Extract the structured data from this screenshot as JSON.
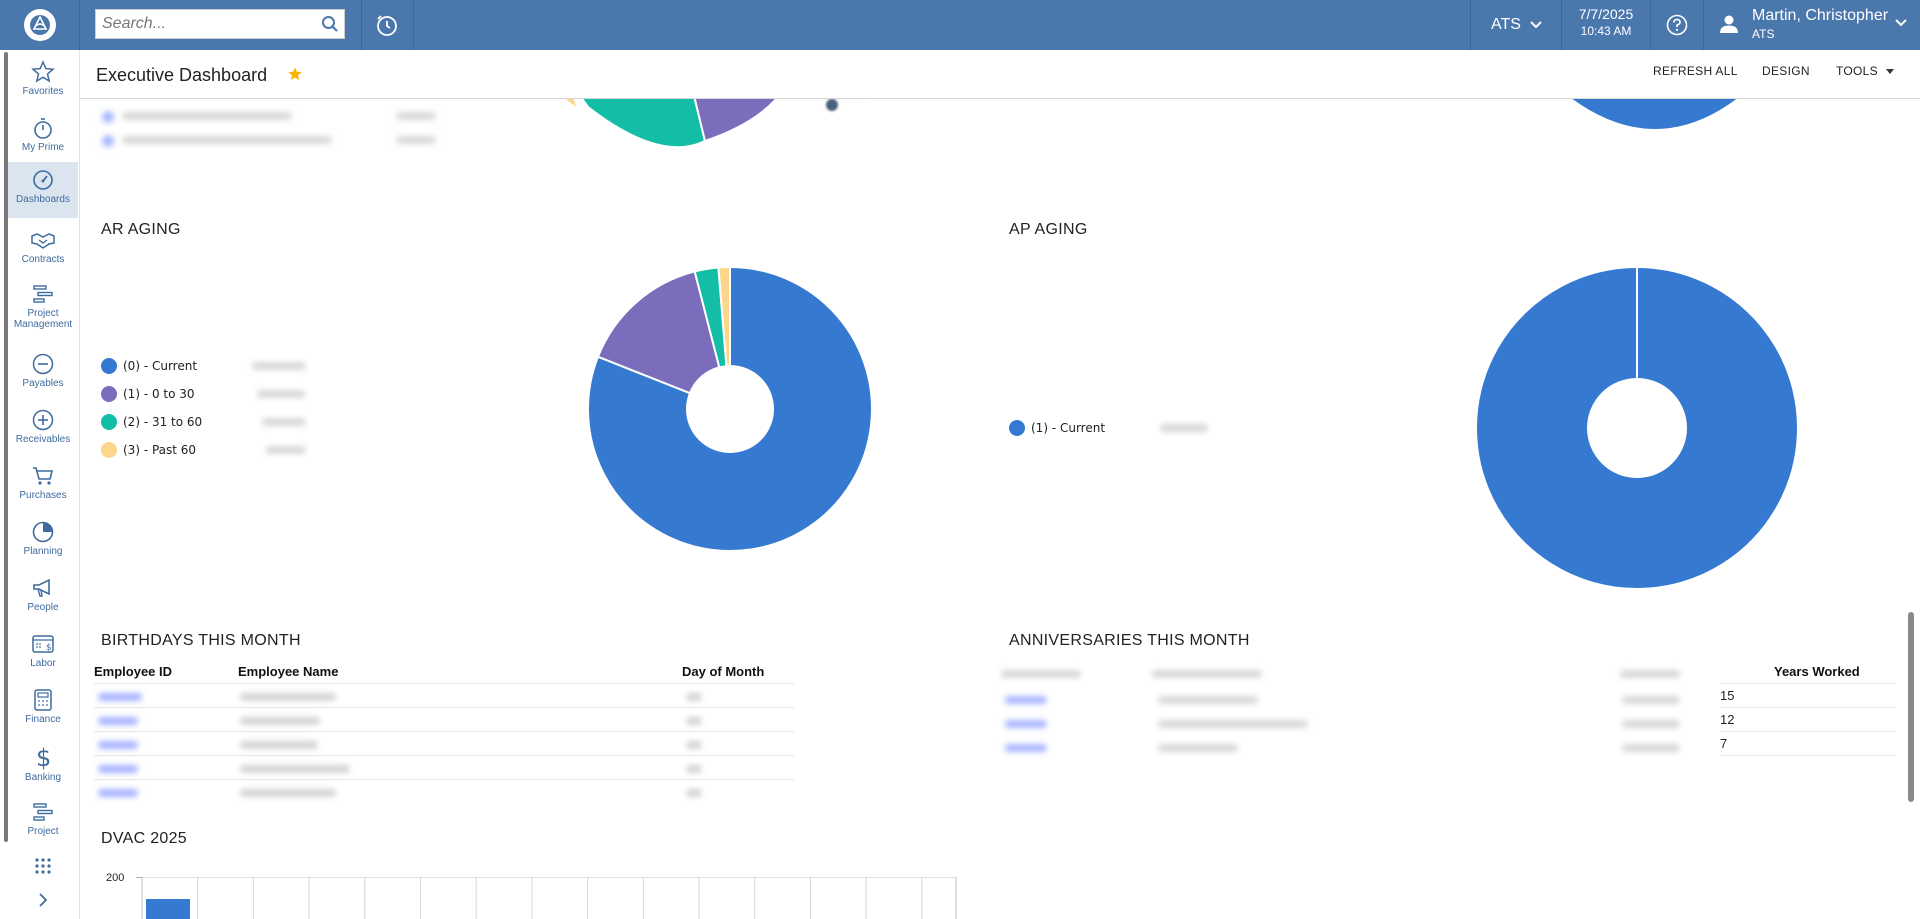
{
  "topbar": {
    "search_placeholder": "Search...",
    "company": "ATS",
    "date": "7/7/2025",
    "time": "10:43 AM",
    "user_name": "Martin, Christopher",
    "user_company": "ATS"
  },
  "sidebar": {
    "items": [
      {
        "label": "Favorites",
        "icon": "star-icon"
      },
      {
        "label": "My Prime",
        "icon": "stopwatch-icon"
      },
      {
        "label": "Dashboards",
        "icon": "gauge-icon",
        "active": true
      },
      {
        "label": "Contracts",
        "icon": "handshake-icon"
      },
      {
        "label": "Project Management",
        "icon": "gantt-icon"
      },
      {
        "label": "Payables",
        "icon": "minus-circle-icon"
      },
      {
        "label": "Receivables",
        "icon": "plus-circle-icon"
      },
      {
        "label": "Purchases",
        "icon": "cart-icon"
      },
      {
        "label": "Planning",
        "icon": "pie-icon"
      },
      {
        "label": "People",
        "icon": "megaphone-icon"
      },
      {
        "label": "Labor",
        "icon": "calendar-dollar-icon"
      },
      {
        "label": "Finance",
        "icon": "calculator-icon"
      },
      {
        "label": "Banking",
        "icon": "dollar-icon"
      },
      {
        "label": "Project",
        "icon": "gantt-icon"
      }
    ]
  },
  "header": {
    "title": "Executive Dashboard",
    "refresh_all": "REFRESH ALL",
    "design": "DESIGN",
    "tools": "TOOLS"
  },
  "ar_aging": {
    "title": "AR AGING",
    "legend": [
      "(0) - Current",
      "(1) - 0 to 30",
      "(2) - 31 to 60",
      "(3) - Past 60"
    ],
    "colors": [
      "#3679d0",
      "#7b6dbb",
      "#13bda6",
      "#fcd68a"
    ]
  },
  "ap_aging": {
    "title": "AP AGING",
    "legend": [
      "(1) - Current"
    ],
    "colors": [
      "#3679d0"
    ]
  },
  "birthdays": {
    "title": "BIRTHDAYS THIS MONTH",
    "columns": [
      "Employee ID",
      "Employee Name",
      "Day of Month"
    ]
  },
  "anniversaries": {
    "title": "ANNIVERSARIES THIS MONTH",
    "columns": [
      "Years Worked"
    ],
    "years": [
      "15",
      "12",
      "7"
    ]
  },
  "dvac": {
    "title": "DVAC 2025",
    "y_tick_top": "200"
  },
  "chart_data": [
    {
      "type": "pie",
      "title": "AR AGING",
      "categories": [
        "(0) - Current",
        "(1) - 0 to 30",
        "(2) - 31 to 60",
        "(3) - Past 60"
      ],
      "values": [
        81,
        15,
        2.7,
        1.3
      ],
      "donut": true
    },
    {
      "type": "pie",
      "title": "AP AGING",
      "categories": [
        "(1) - Current"
      ],
      "values": [
        100
      ],
      "donut": true
    }
  ]
}
